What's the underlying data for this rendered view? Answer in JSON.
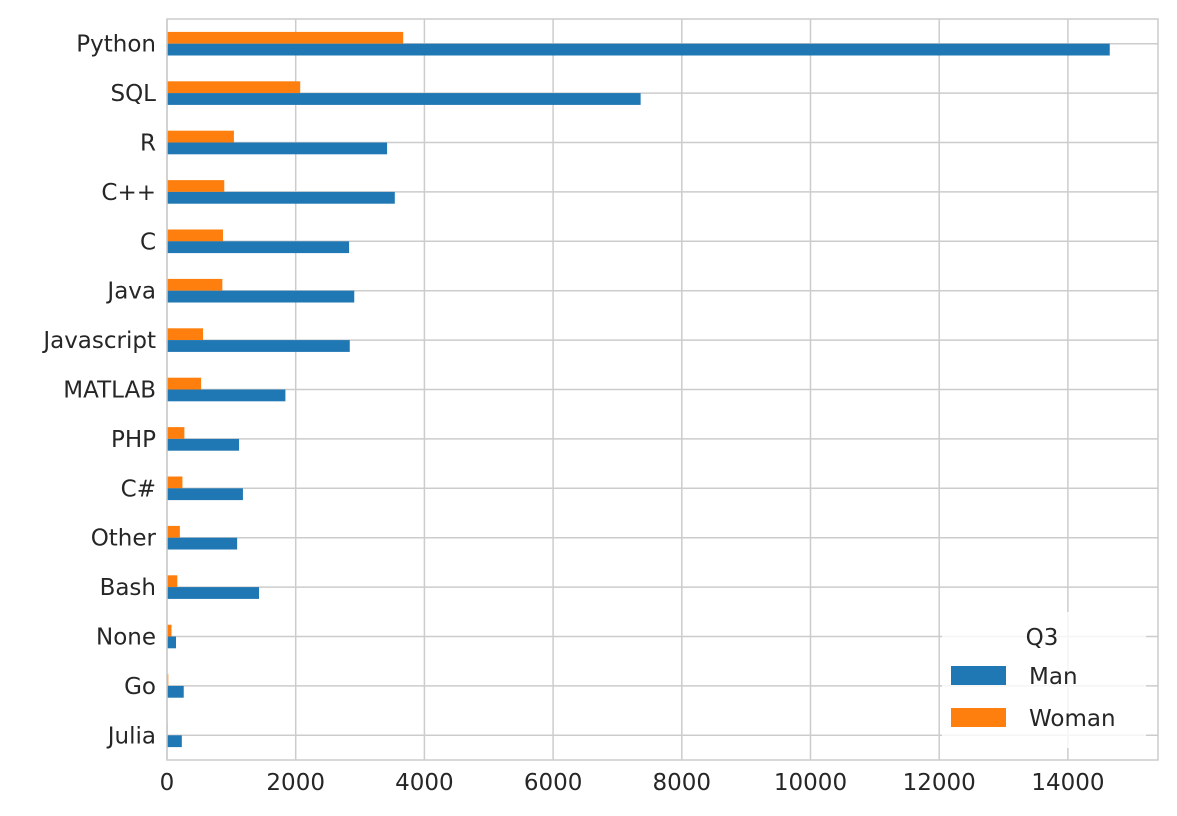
{
  "chart_data": {
    "type": "bar",
    "orientation": "horizontal",
    "categories": [
      "Python",
      "SQL",
      "R",
      "C++",
      "C",
      "Java",
      "Javascript",
      "MATLAB",
      "PHP",
      "C#",
      "Other",
      "Bash",
      "None",
      "Go",
      "Julia"
    ],
    "series": [
      {
        "name": "Man",
        "color": "#1f77b4",
        "values": [
          14650,
          7360,
          3420,
          3540,
          2830,
          2910,
          2840,
          1840,
          1120,
          1180,
          1090,
          1430,
          140,
          260,
          230
        ]
      },
      {
        "name": "Woman",
        "color": "#ff7f0e",
        "values": [
          3670,
          2070,
          1040,
          890,
          870,
          860,
          560,
          530,
          270,
          240,
          200,
          160,
          70,
          20,
          10
        ]
      }
    ],
    "legend": {
      "title": "Q3",
      "placement": "bottom-right"
    },
    "xlim": [
      0,
      15400
    ],
    "xticks": [
      0,
      2000,
      4000,
      6000,
      8000,
      10000,
      12000,
      14000
    ],
    "grid": true
  }
}
